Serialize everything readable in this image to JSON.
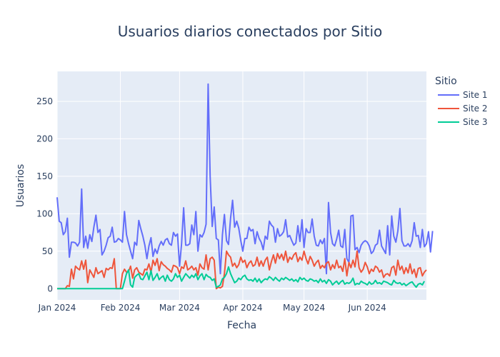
{
  "chart_data": {
    "type": "line",
    "title": "Usuarios diarios conectados por Sitio",
    "xlabel": "Fecha",
    "ylabel": "Usuarios",
    "legend_title": "Sitio",
    "legend_position": "top-right",
    "grid": true,
    "plot_bgcolor": "#e5ecf6",
    "xlim": [
      "2024-01-01",
      "2024-06-30"
    ],
    "ylim": [
      -15,
      290
    ],
    "x_ticks": [
      {
        "date": "2024-01-01",
        "label": "Jan 2024"
      },
      {
        "date": "2024-02-01",
        "label": "Feb 2024"
      },
      {
        "date": "2024-03-01",
        "label": "Mar 2024"
      },
      {
        "date": "2024-04-01",
        "label": "Apr 2024"
      },
      {
        "date": "2024-05-01",
        "label": "May 2024"
      },
      {
        "date": "2024-06-01",
        "label": "Jun 2024"
      }
    ],
    "y_ticks": [
      0,
      50,
      100,
      150,
      200,
      250
    ],
    "x_start": "2024-01-01",
    "x_step": "1 day",
    "series": [
      {
        "name": "Site 1",
        "color": "#636efa",
        "values": [
          122,
          90,
          88,
          72,
          76,
          94,
          42,
          62,
          62,
          61,
          57,
          62,
          133,
          55,
          70,
          54,
          72,
          63,
          82,
          98,
          75,
          79,
          45,
          50,
          58,
          68,
          70,
          82,
          62,
          63,
          67,
          65,
          62,
          103,
          72,
          60,
          50,
          40,
          62,
          58,
          91,
          80,
          70,
          58,
          40,
          57,
          68,
          43,
          53,
          47,
          57,
          63,
          58,
          65,
          67,
          60,
          58,
          75,
          70,
          73,
          30,
          60,
          108,
          58,
          58,
          60,
          85,
          72,
          103,
          50,
          72,
          69,
          75,
          86,
          273,
          150,
          83,
          109,
          67,
          65,
          20,
          72,
          99,
          64,
          59,
          94,
          118,
          82,
          90,
          81,
          64,
          50,
          67,
          67,
          82,
          77,
          79,
          60,
          76,
          67,
          62,
          52,
          70,
          66,
          90,
          85,
          82,
          62,
          80,
          70,
          72,
          76,
          92,
          69,
          71,
          64,
          58,
          61,
          84,
          63,
          92,
          55,
          80,
          75,
          75,
          93,
          70,
          58,
          57,
          65,
          60,
          67,
          20,
          115,
          75,
          60,
          57,
          66,
          78,
          57,
          55,
          79,
          40,
          35,
          97,
          98,
          52,
          55,
          48,
          58,
          62,
          64,
          62,
          57,
          47,
          50,
          58,
          60,
          78,
          57,
          52,
          47,
          84,
          45,
          97,
          70,
          62,
          77,
          107,
          64,
          57,
          57,
          60,
          56,
          64,
          88,
          70,
          71,
          55,
          79,
          56,
          60,
          76,
          49,
          77
        ]
      },
      {
        "name": "Site 2",
        "color": "#ef553b",
        "values": [
          0,
          0,
          0,
          0,
          0,
          4,
          3,
          26,
          13,
          30,
          27,
          25,
          37,
          26,
          38,
          8,
          25,
          20,
          15,
          28,
          20,
          22,
          24,
          15,
          27,
          25,
          28,
          27,
          40,
          0,
          0,
          0,
          20,
          26,
          22,
          23,
          30,
          14,
          25,
          28,
          22,
          20,
          18,
          26,
          25,
          33,
          22,
          38,
          31,
          40,
          24,
          36,
          32,
          30,
          27,
          25,
          22,
          31,
          30,
          28,
          20,
          29,
          27,
          37,
          25,
          27,
          30,
          25,
          28,
          18,
          33,
          28,
          26,
          45,
          25,
          40,
          42,
          38,
          0,
          2,
          1,
          3,
          20,
          50,
          45,
          42,
          30,
          34,
          28,
          32,
          42,
          35,
          38,
          28,
          34,
          37,
          30,
          32,
          42,
          30,
          37,
          30,
          38,
          42,
          25,
          36,
          45,
          34,
          47,
          40,
          46,
          38,
          50,
          35,
          42,
          39,
          45,
          48,
          36,
          42,
          38,
          50,
          40,
          33,
          43,
          38,
          30,
          35,
          38,
          27,
          31,
          28,
          34,
          36,
          25,
          32,
          27,
          38,
          28,
          30,
          23,
          40,
          17,
          35,
          28,
          38,
          29,
          50,
          28,
          22,
          26,
          35,
          29,
          20,
          26,
          23,
          30,
          28,
          22,
          25,
          15,
          19,
          20,
          17,
          28,
          30,
          18,
          38,
          25,
          30,
          20,
          28,
          21,
          33,
          20,
          26,
          15,
          27,
          28,
          17,
          22,
          25
        ]
      },
      {
        "name": "Site 3",
        "color": "#00cc96",
        "values": [
          0,
          0,
          0,
          0,
          0,
          0,
          0,
          0,
          0,
          0,
          0,
          0,
          0,
          0,
          0,
          0,
          0,
          0,
          0,
          0,
          0,
          0,
          0,
          0,
          0,
          0,
          0,
          0,
          0,
          0,
          0,
          0,
          0,
          10,
          20,
          25,
          5,
          2,
          15,
          18,
          20,
          13,
          12,
          17,
          22,
          12,
          24,
          11,
          15,
          20,
          12,
          15,
          17,
          10,
          18,
          12,
          10,
          13,
          20,
          15,
          18,
          10,
          15,
          20,
          17,
          14,
          18,
          15,
          20,
          12,
          17,
          20,
          12,
          19,
          16,
          15,
          11,
          13,
          2,
          3,
          5,
          13,
          15,
          20,
          29,
          20,
          14,
          8,
          10,
          14,
          12,
          16,
          18,
          13,
          11,
          12,
          10,
          14,
          9,
          13,
          8,
          11,
          13,
          12,
          16,
          14,
          11,
          15,
          12,
          10,
          14,
          12,
          15,
          13,
          11,
          13,
          10,
          12,
          9,
          15,
          12,
          14,
          11,
          10,
          13,
          12,
          10,
          11,
          8,
          13,
          9,
          11,
          7,
          12,
          10,
          5,
          8,
          10,
          6,
          9,
          11,
          6,
          8,
          7,
          9,
          14,
          5,
          7,
          6,
          10,
          8,
          7,
          5,
          9,
          6,
          7,
          11,
          7,
          8,
          6,
          10,
          9,
          8,
          6,
          5,
          11,
          8,
          7,
          8,
          5,
          7,
          4,
          6,
          8,
          9,
          5,
          2,
          6,
          7,
          5,
          10
        ]
      }
    ]
  }
}
